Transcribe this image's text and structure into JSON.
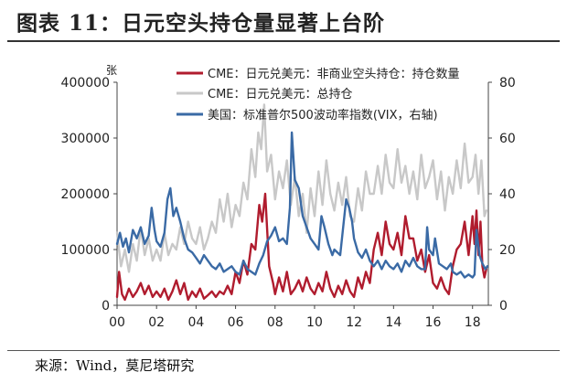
{
  "title": "图表 11：日元空头持仓量显著上台阶",
  "source": "来源：Wind，莫尼塔研究",
  "chart_data": {
    "type": "line",
    "left_unit": "张",
    "x_tick_labels": [
      "00",
      "02",
      "04",
      "06",
      "08",
      "10",
      "12",
      "14",
      "16",
      "18"
    ],
    "x_range": [
      2000,
      2018.8
    ],
    "y_left_range": [
      0,
      400000
    ],
    "y_left_ticks": [
      "0",
      "100000",
      "200000",
      "300000",
      "400000"
    ],
    "y_right_range": [
      0,
      80
    ],
    "y_right_ticks": [
      "0",
      "20",
      "40",
      "60",
      "80"
    ],
    "legend_placement": "top-center",
    "grid": false,
    "series": [
      {
        "name": "CME：日元兑美元：非商业空头持仓：持仓数量",
        "color": "#b01c2e",
        "axis": "left",
        "x": [
          2000.0,
          2000.1,
          2000.25,
          2000.4,
          2000.6,
          2000.8,
          2001.0,
          2001.2,
          2001.4,
          2001.6,
          2001.8,
          2002.0,
          2002.2,
          2002.4,
          2002.6,
          2002.8,
          2003.0,
          2003.2,
          2003.4,
          2003.6,
          2003.8,
          2004.0,
          2004.2,
          2004.4,
          2004.6,
          2004.8,
          2005.0,
          2005.2,
          2005.4,
          2005.6,
          2005.8,
          2006.0,
          2006.2,
          2006.4,
          2006.6,
          2006.8,
          2007.0,
          2007.2,
          2007.35,
          2007.5,
          2007.7,
          2007.9,
          2008.0,
          2008.2,
          2008.4,
          2008.6,
          2008.8,
          2009.0,
          2009.2,
          2009.4,
          2009.6,
          2009.8,
          2010.0,
          2010.2,
          2010.4,
          2010.6,
          2010.8,
          2011.0,
          2011.2,
          2011.4,
          2011.6,
          2011.8,
          2012.0,
          2012.2,
          2012.4,
          2012.6,
          2012.8,
          2013.0,
          2013.2,
          2013.4,
          2013.6,
          2013.8,
          2014.0,
          2014.2,
          2014.4,
          2014.6,
          2014.8,
          2015.0,
          2015.2,
          2015.4,
          2015.6,
          2015.8,
          2016.0,
          2016.2,
          2016.4,
          2016.6,
          2016.8,
          2017.0,
          2017.2,
          2017.4,
          2017.6,
          2017.8,
          2018.0,
          2018.1,
          2018.2,
          2018.3,
          2018.4,
          2018.5,
          2018.6,
          2018.7
        ],
        "values": [
          15000,
          60000,
          20000,
          10000,
          30000,
          15000,
          25000,
          40000,
          20000,
          35000,
          15000,
          25000,
          15000,
          30000,
          10000,
          25000,
          45000,
          20000,
          40000,
          10000,
          25000,
          15000,
          30000,
          12000,
          18000,
          25000,
          15000,
          25000,
          20000,
          35000,
          20000,
          60000,
          40000,
          80000,
          55000,
          110000,
          100000,
          180000,
          150000,
          200000,
          70000,
          40000,
          20000,
          50000,
          25000,
          60000,
          20000,
          30000,
          45000,
          25000,
          50000,
          30000,
          20000,
          40000,
          25000,
          60000,
          30000,
          15000,
          35000,
          20000,
          45000,
          25000,
          15000,
          50000,
          30000,
          60000,
          40000,
          100000,
          130000,
          90000,
          150000,
          110000,
          100000,
          130000,
          90000,
          160000,
          120000,
          120000,
          80000,
          100000,
          60000,
          90000,
          40000,
          30000,
          50000,
          30000,
          20000,
          70000,
          100000,
          110000,
          150000,
          90000,
          160000,
          110000,
          170000,
          90000,
          150000,
          70000,
          50000,
          65000
        ]
      },
      {
        "name": "CME：日元兑美元：总持仓",
        "color": "#c8c8c8",
        "axis": "left",
        "x": [
          2000.0,
          2000.2,
          2000.4,
          2000.6,
          2000.8,
          2001.0,
          2001.2,
          2001.4,
          2001.6,
          2001.8,
          2002.0,
          2002.2,
          2002.4,
          2002.6,
          2002.8,
          2003.0,
          2003.2,
          2003.4,
          2003.6,
          2003.8,
          2004.0,
          2004.2,
          2004.4,
          2004.6,
          2004.8,
          2005.0,
          2005.2,
          2005.4,
          2005.6,
          2005.8,
          2006.0,
          2006.2,
          2006.4,
          2006.6,
          2006.8,
          2007.0,
          2007.15,
          2007.3,
          2007.45,
          2007.6,
          2007.8,
          2008.0,
          2008.2,
          2008.4,
          2008.6,
          2008.8,
          2009.0,
          2009.2,
          2009.4,
          2009.6,
          2009.8,
          2010.0,
          2010.2,
          2010.4,
          2010.6,
          2010.8,
          2011.0,
          2011.2,
          2011.4,
          2011.6,
          2011.8,
          2012.0,
          2012.2,
          2012.4,
          2012.6,
          2012.8,
          2013.0,
          2013.2,
          2013.4,
          2013.6,
          2013.8,
          2014.0,
          2014.2,
          2014.4,
          2014.6,
          2014.8,
          2015.0,
          2015.2,
          2015.4,
          2015.6,
          2015.8,
          2016.0,
          2016.2,
          2016.4,
          2016.6,
          2016.8,
          2017.0,
          2017.2,
          2017.4,
          2017.6,
          2017.8,
          2018.0,
          2018.15,
          2018.3,
          2018.45,
          2018.6,
          2018.7
        ],
        "values": [
          130000,
          70000,
          100000,
          60000,
          110000,
          80000,
          140000,
          90000,
          120000,
          80000,
          100000,
          80000,
          130000,
          90000,
          110000,
          100000,
          140000,
          110000,
          150000,
          120000,
          110000,
          140000,
          100000,
          120000,
          150000,
          130000,
          190000,
          150000,
          200000,
          140000,
          180000,
          160000,
          220000,
          190000,
          280000,
          230000,
          310000,
          280000,
          360000,
          240000,
          270000,
          190000,
          240000,
          210000,
          260000,
          180000,
          230000,
          160000,
          200000,
          130000,
          210000,
          160000,
          240000,
          180000,
          260000,
          200000,
          170000,
          220000,
          180000,
          230000,
          160000,
          150000,
          210000,
          170000,
          240000,
          200000,
          200000,
          250000,
          200000,
          270000,
          220000,
          210000,
          280000,
          220000,
          250000,
          200000,
          240000,
          190000,
          270000,
          210000,
          230000,
          260000,
          190000,
          240000,
          170000,
          230000,
          200000,
          260000,
          210000,
          290000,
          220000,
          230000,
          270000,
          200000,
          260000,
          160000,
          170000
        ]
      },
      {
        "name": "美国：标准普尔500波动率指数(VIX，右轴)",
        "color": "#3a6aa5",
        "axis": "right",
        "x": [
          2000.0,
          2000.15,
          2000.3,
          2000.45,
          2000.6,
          2000.8,
          2001.0,
          2001.2,
          2001.4,
          2001.6,
          2001.75,
          2001.9,
          2002.0,
          2002.2,
          2002.4,
          2002.55,
          2002.7,
          2002.85,
          2003.0,
          2003.2,
          2003.4,
          2003.6,
          2003.8,
          2004.0,
          2004.2,
          2004.4,
          2004.6,
          2004.8,
          2005.0,
          2005.2,
          2005.4,
          2005.6,
          2005.8,
          2006.0,
          2006.2,
          2006.4,
          2006.6,
          2006.8,
          2007.0,
          2007.2,
          2007.4,
          2007.6,
          2007.8,
          2008.0,
          2008.2,
          2008.4,
          2008.6,
          2008.75,
          2008.85,
          2009.0,
          2009.2,
          2009.4,
          2009.6,
          2009.8,
          2010.0,
          2010.2,
          2010.35,
          2010.5,
          2010.7,
          2010.9,
          2011.0,
          2011.3,
          2011.6,
          2011.75,
          2011.9,
          2012.0,
          2012.2,
          2012.4,
          2012.6,
          2012.8,
          2013.0,
          2013.2,
          2013.4,
          2013.6,
          2013.8,
          2014.0,
          2014.2,
          2014.4,
          2014.6,
          2014.8,
          2015.0,
          2015.2,
          2015.4,
          2015.6,
          2015.7,
          2015.8,
          2016.0,
          2016.1,
          2016.3,
          2016.5,
          2016.7,
          2016.9,
          2017.0,
          2017.2,
          2017.4,
          2017.6,
          2017.8,
          2018.0,
          2018.1,
          2018.2,
          2018.35,
          2018.5,
          2018.65,
          2018.75
        ],
        "values": [
          22,
          26,
          21,
          24,
          19,
          27,
          24,
          28,
          22,
          25,
          35,
          27,
          23,
          21,
          26,
          38,
          42,
          32,
          35,
          30,
          24,
          20,
          19,
          17,
          15,
          18,
          16,
          14,
          13,
          15,
          12,
          13,
          14,
          12,
          11,
          16,
          13,
          12,
          11,
          15,
          18,
          23,
          25,
          28,
          23,
          24,
          22,
          35,
          62,
          45,
          42,
          32,
          28,
          24,
          22,
          20,
          32,
          28,
          22,
          18,
          20,
          18,
          38,
          35,
          30,
          24,
          19,
          17,
          20,
          16,
          14,
          16,
          13,
          16,
          14,
          13,
          15,
          12,
          16,
          14,
          17,
          14,
          13,
          13,
          28,
          20,
          18,
          24,
          15,
          14,
          13,
          15,
          12,
          11,
          12,
          10,
          11,
          10,
          11,
          27,
          18,
          15,
          13,
          14
        ]
      }
    ]
  }
}
